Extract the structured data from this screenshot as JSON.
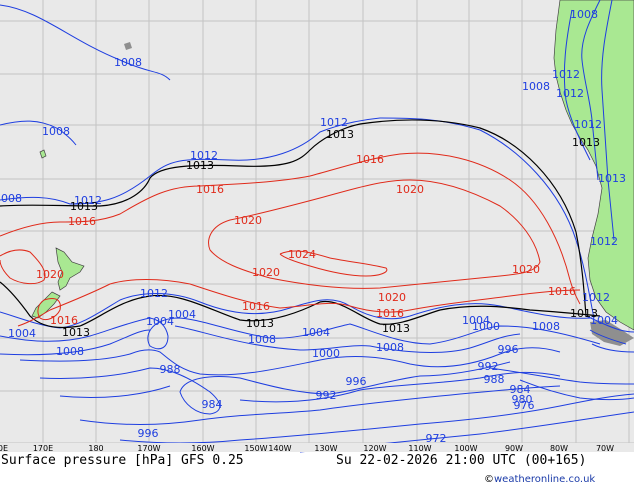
{
  "colors": {
    "ocean": "#e9e9e9",
    "land": "#a9e892",
    "grid": "#c4c4c4",
    "isobar_low": "#1e3ee0",
    "isobar_mid": "#000000",
    "isobar_high": "#e02a1a",
    "credit": "#1a3aa8"
  },
  "longitude_labels": [
    "0E",
    "170E",
    "180",
    "170W",
    "160W",
    "150W",
    "140W",
    "130W",
    "120W",
    "110W",
    "100W",
    "90W",
    "80W",
    "70W"
  ],
  "isobar_labels": {
    "blue": [
      "1008",
      "1008",
      "1008",
      "1012",
      "1012",
      "1012",
      "1008",
      "1008",
      "1012",
      "1012",
      "1012",
      "1004",
      "1008",
      "1004",
      "1004",
      "1008",
      "1004",
      "1004",
      "1000",
      "1008",
      "1000",
      "1008",
      "996",
      "988",
      "984",
      "996",
      "992",
      "996",
      "992",
      "988",
      "984",
      "980",
      "976",
      "972",
      "1004",
      "1012",
      "1012",
      "1012",
      "1013"
    ],
    "black": [
      "1013",
      "1013",
      "1013",
      "1013",
      "1013",
      "1013",
      "1013",
      "1013"
    ],
    "red": [
      "1016",
      "1016",
      "1016",
      "1020",
      "1020",
      "1024",
      "1020",
      "1020",
      "1020",
      "1016",
      "1016",
      "1016",
      "1016",
      "1020"
    ]
  },
  "footer": {
    "caption": "Surface pressure [hPa] GFS 0.25",
    "valid": "Su 22-02-2026 21:00 UTC (00+165)",
    "credit_copy": "©",
    "credit_site": "weatheronline.co.uk"
  }
}
